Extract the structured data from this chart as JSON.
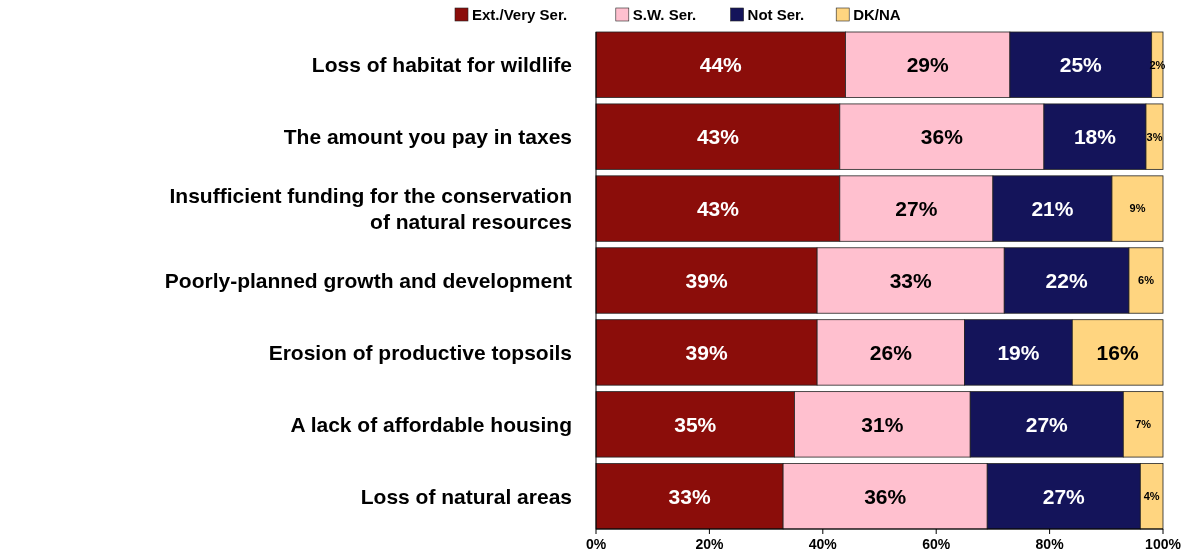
{
  "chart_data": {
    "type": "bar",
    "orientation": "horizontal",
    "stacked": true,
    "legend": "top",
    "grid": false,
    "categories": [
      "Loss of habitat for wildlife",
      "The amount you pay in taxes",
      "Insufficient funding for the conservation\nof natural resources",
      "Poorly-planned growth and development",
      "Erosion of productive topsoils",
      "A lack of affordable housing",
      "Loss of natural areas"
    ],
    "series": [
      {
        "name": "Ext./Very Ser.",
        "color": "#8b0d0a",
        "values": [
          44,
          43,
          43,
          39,
          39,
          35,
          33
        ],
        "value_labels": [
          "44%",
          "43%",
          "43%",
          "39%",
          "39%",
          "35%",
          "33%"
        ]
      },
      {
        "name": "S.W. Ser.",
        "color": "#ffc0cf",
        "values": [
          29,
          36,
          27,
          33,
          26,
          31,
          36
        ],
        "value_labels": [
          "29%",
          "36%",
          "27%",
          "33%",
          "26%",
          "31%",
          "36%"
        ]
      },
      {
        "name": "Not Ser.",
        "color": "#14145a",
        "values": [
          25,
          18,
          21,
          22,
          19,
          27,
          27
        ],
        "value_labels": [
          "25%",
          "18%",
          "21%",
          "22%",
          "19%",
          "27%",
          "27%"
        ]
      },
      {
        "name": "DK/NA",
        "color": "#ffd580",
        "values": [
          2,
          3,
          9,
          6,
          16,
          7,
          4
        ],
        "value_labels": [
          "2%",
          "3%",
          "9%",
          "6%",
          "16%",
          "7%",
          "4%"
        ]
      }
    ],
    "xlim": [
      0,
      100
    ],
    "xticks": [
      {
        "value": 0,
        "label": "0%"
      },
      {
        "value": 20,
        "label": "20%"
      },
      {
        "value": 40,
        "label": "40%"
      },
      {
        "value": 60,
        "label": "60%"
      },
      {
        "value": 80,
        "label": "80%"
      },
      {
        "value": 100,
        "label": "100%"
      }
    ]
  }
}
